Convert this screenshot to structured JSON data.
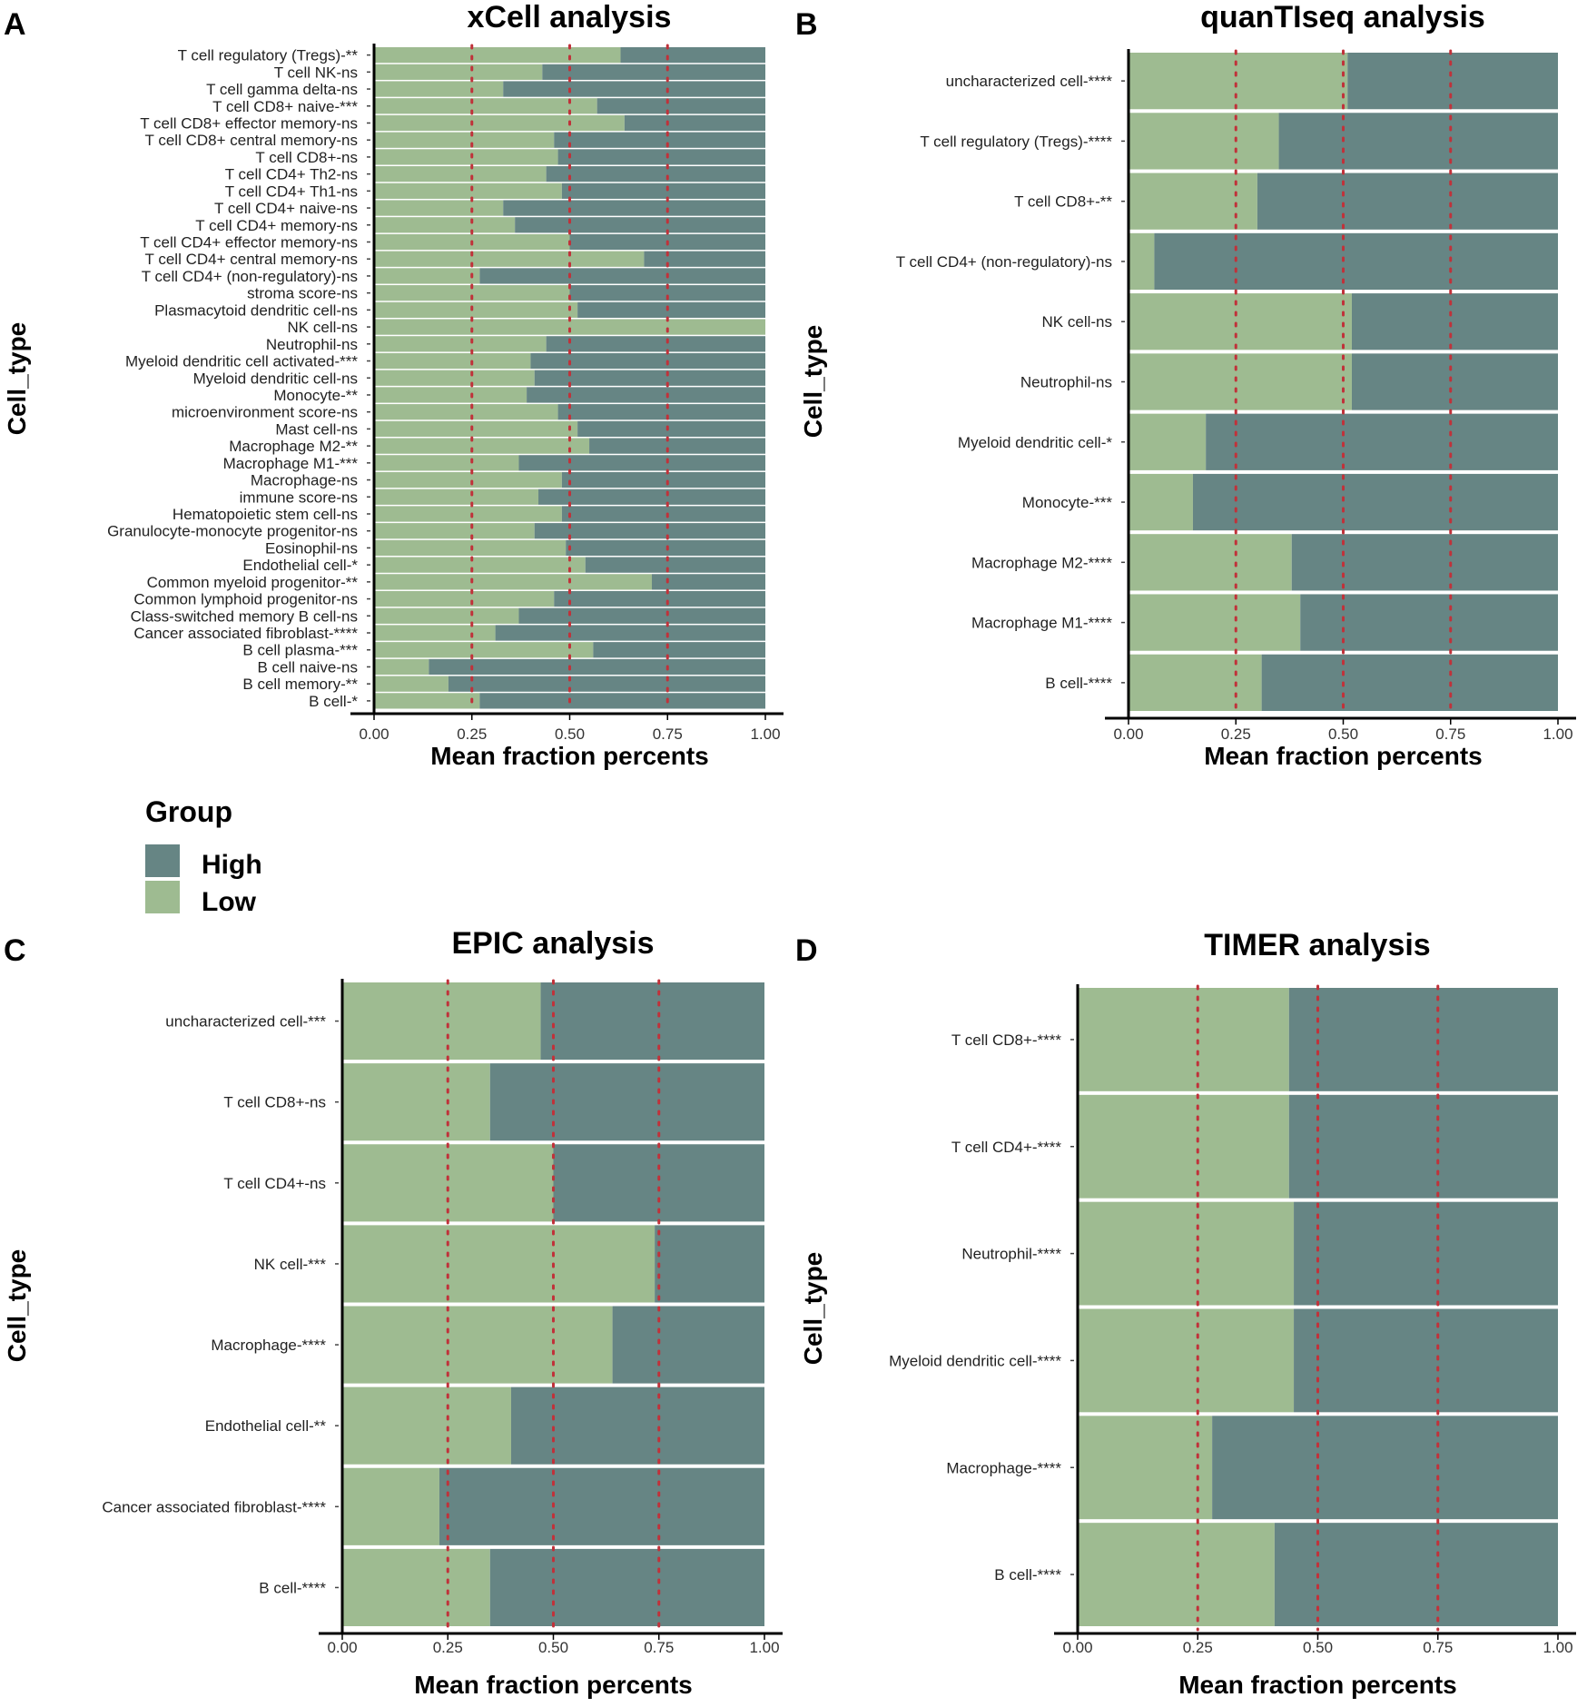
{
  "legend": {
    "title": "Group",
    "items": [
      {
        "label": "High",
        "color": "#668584"
      },
      {
        "label": "Low",
        "color": "#9ebb91"
      }
    ]
  },
  "colors": {
    "high": "#668584",
    "low": "#9ebb91",
    "reference_line": "#c0323a"
  },
  "chart_data": [
    {
      "panel": "A",
      "type": "bar",
      "stacked": true,
      "orientation": "horizontal",
      "title": "xCell analysis",
      "xlabel": "Mean fraction percents",
      "ylabel": "Cell_type",
      "xlim": [
        0,
        1
      ],
      "xticks": [
        "0.00",
        "0.25",
        "0.50",
        "0.75",
        "1.00"
      ],
      "reference_lines": [
        0.25,
        0.5,
        0.75
      ],
      "categories": [
        "T cell regulatory (Tregs)-**",
        "T cell NK-ns",
        "T cell gamma delta-ns",
        "T cell CD8+ naive-***",
        "T cell CD8+ effector memory-ns",
        "T cell CD8+ central memory-ns",
        "T cell CD8+-ns",
        "T cell CD4+ Th2-ns",
        "T cell CD4+ Th1-ns",
        "T cell CD4+ naive-ns",
        "T cell CD4+ memory-ns",
        "T cell CD4+ effector memory-ns",
        "T cell CD4+ central memory-ns",
        "T cell CD4+ (non-regulatory)-ns",
        "stroma score-ns",
        "Plasmacytoid dendritic cell-ns",
        "NK cell-ns",
        "Neutrophil-ns",
        "Myeloid dendritic cell activated-***",
        "Myeloid dendritic cell-ns",
        "Monocyte-**",
        "microenvironment score-ns",
        "Mast cell-ns",
        "Macrophage M2-**",
        "Macrophage M1-***",
        "Macrophage-ns",
        "immune score-ns",
        "Hematopoietic stem cell-ns",
        "Granulocyte-monocyte progenitor-ns",
        "Eosinophil-ns",
        "Endothelial cell-*",
        "Common myeloid progenitor-**",
        "Common lymphoid progenitor-ns",
        "Class-switched memory B cell-ns",
        "Cancer associated fibroblast-****",
        "B cell plasma-***",
        "B cell naive-ns",
        "B cell memory-**",
        "B cell-*"
      ],
      "series": [
        {
          "name": "Low",
          "values": [
            0.63,
            0.43,
            0.33,
            0.57,
            0.64,
            0.46,
            0.47,
            0.44,
            0.48,
            0.33,
            0.36,
            0.5,
            0.69,
            0.27,
            0.5,
            0.52,
            1.0,
            0.44,
            0.4,
            0.41,
            0.39,
            0.47,
            0.52,
            0.55,
            0.37,
            0.48,
            0.42,
            0.48,
            0.41,
            0.49,
            0.54,
            0.71,
            0.46,
            0.37,
            0.31,
            0.56,
            0.14,
            0.19,
            0.27
          ]
        },
        {
          "name": "High",
          "values": [
            0.37,
            0.57,
            0.67,
            0.43,
            0.36,
            0.54,
            0.53,
            0.56,
            0.52,
            0.67,
            0.64,
            0.5,
            0.31,
            0.73,
            0.5,
            0.48,
            0.0,
            0.56,
            0.6,
            0.59,
            0.61,
            0.53,
            0.48,
            0.45,
            0.63,
            0.52,
            0.58,
            0.52,
            0.59,
            0.51,
            0.46,
            0.29,
            0.54,
            0.63,
            0.69,
            0.44,
            0.86,
            0.81,
            0.73
          ]
        }
      ]
    },
    {
      "panel": "B",
      "type": "bar",
      "stacked": true,
      "orientation": "horizontal",
      "title": "quanTIseq analysis",
      "xlabel": "Mean fraction percents",
      "ylabel": "Cell_type",
      "xlim": [
        0,
        1
      ],
      "xticks": [
        "0.00",
        "0.25",
        "0.50",
        "0.75",
        "1.00"
      ],
      "reference_lines": [
        0.25,
        0.5,
        0.75
      ],
      "categories": [
        "uncharacterized cell-****",
        "T cell regulatory (Tregs)-****",
        "T cell CD8+-**",
        "T cell CD4+ (non-regulatory)-ns",
        "NK cell-ns",
        "Neutrophil-ns",
        "Myeloid dendritic cell-*",
        "Monocyte-***",
        "Macrophage M2-****",
        "Macrophage M1-****",
        "B cell-****"
      ],
      "series": [
        {
          "name": "Low",
          "values": [
            0.51,
            0.35,
            0.3,
            0.06,
            0.52,
            0.52,
            0.18,
            0.15,
            0.38,
            0.4,
            0.31
          ]
        },
        {
          "name": "High",
          "values": [
            0.49,
            0.65,
            0.7,
            0.94,
            0.48,
            0.48,
            0.82,
            0.85,
            0.62,
            0.6,
            0.69
          ]
        }
      ]
    },
    {
      "panel": "C",
      "type": "bar",
      "stacked": true,
      "orientation": "horizontal",
      "title": "EPIC analysis",
      "xlabel": "Mean fraction percents",
      "ylabel": "Cell_type",
      "xlim": [
        0,
        1
      ],
      "xticks": [
        "0.00",
        "0.25",
        "0.50",
        "0.75",
        "1.00"
      ],
      "reference_lines": [
        0.25,
        0.5,
        0.75
      ],
      "categories": [
        "uncharacterized cell-***",
        "T cell CD8+-ns",
        "T cell CD4+-ns",
        "NK cell-***",
        "Macrophage-****",
        "Endothelial cell-**",
        "Cancer associated fibroblast-****",
        "B cell-****"
      ],
      "series": [
        {
          "name": "Low",
          "values": [
            0.47,
            0.35,
            0.5,
            0.74,
            0.64,
            0.4,
            0.23,
            0.35
          ]
        },
        {
          "name": "High",
          "values": [
            0.53,
            0.65,
            0.5,
            0.26,
            0.36,
            0.6,
            0.77,
            0.65
          ]
        }
      ]
    },
    {
      "panel": "D",
      "type": "bar",
      "stacked": true,
      "orientation": "horizontal",
      "title": "TIMER analysis",
      "xlabel": "Mean fraction percents",
      "ylabel": "Cell_type",
      "xlim": [
        0,
        1
      ],
      "xticks": [
        "0.00",
        "0.25",
        "0.50",
        "0.75",
        "1.00"
      ],
      "reference_lines": [
        0.25,
        0.5,
        0.75
      ],
      "categories": [
        "T cell CD8+-****",
        "T cell CD4+-****",
        "Neutrophil-****",
        "Myeloid dendritic cell-****",
        "Macrophage-****",
        "B cell-****"
      ],
      "series": [
        {
          "name": "Low",
          "values": [
            0.44,
            0.44,
            0.45,
            0.45,
            0.28,
            0.41
          ]
        },
        {
          "name": "High",
          "values": [
            0.56,
            0.56,
            0.55,
            0.55,
            0.72,
            0.59
          ]
        }
      ]
    }
  ]
}
